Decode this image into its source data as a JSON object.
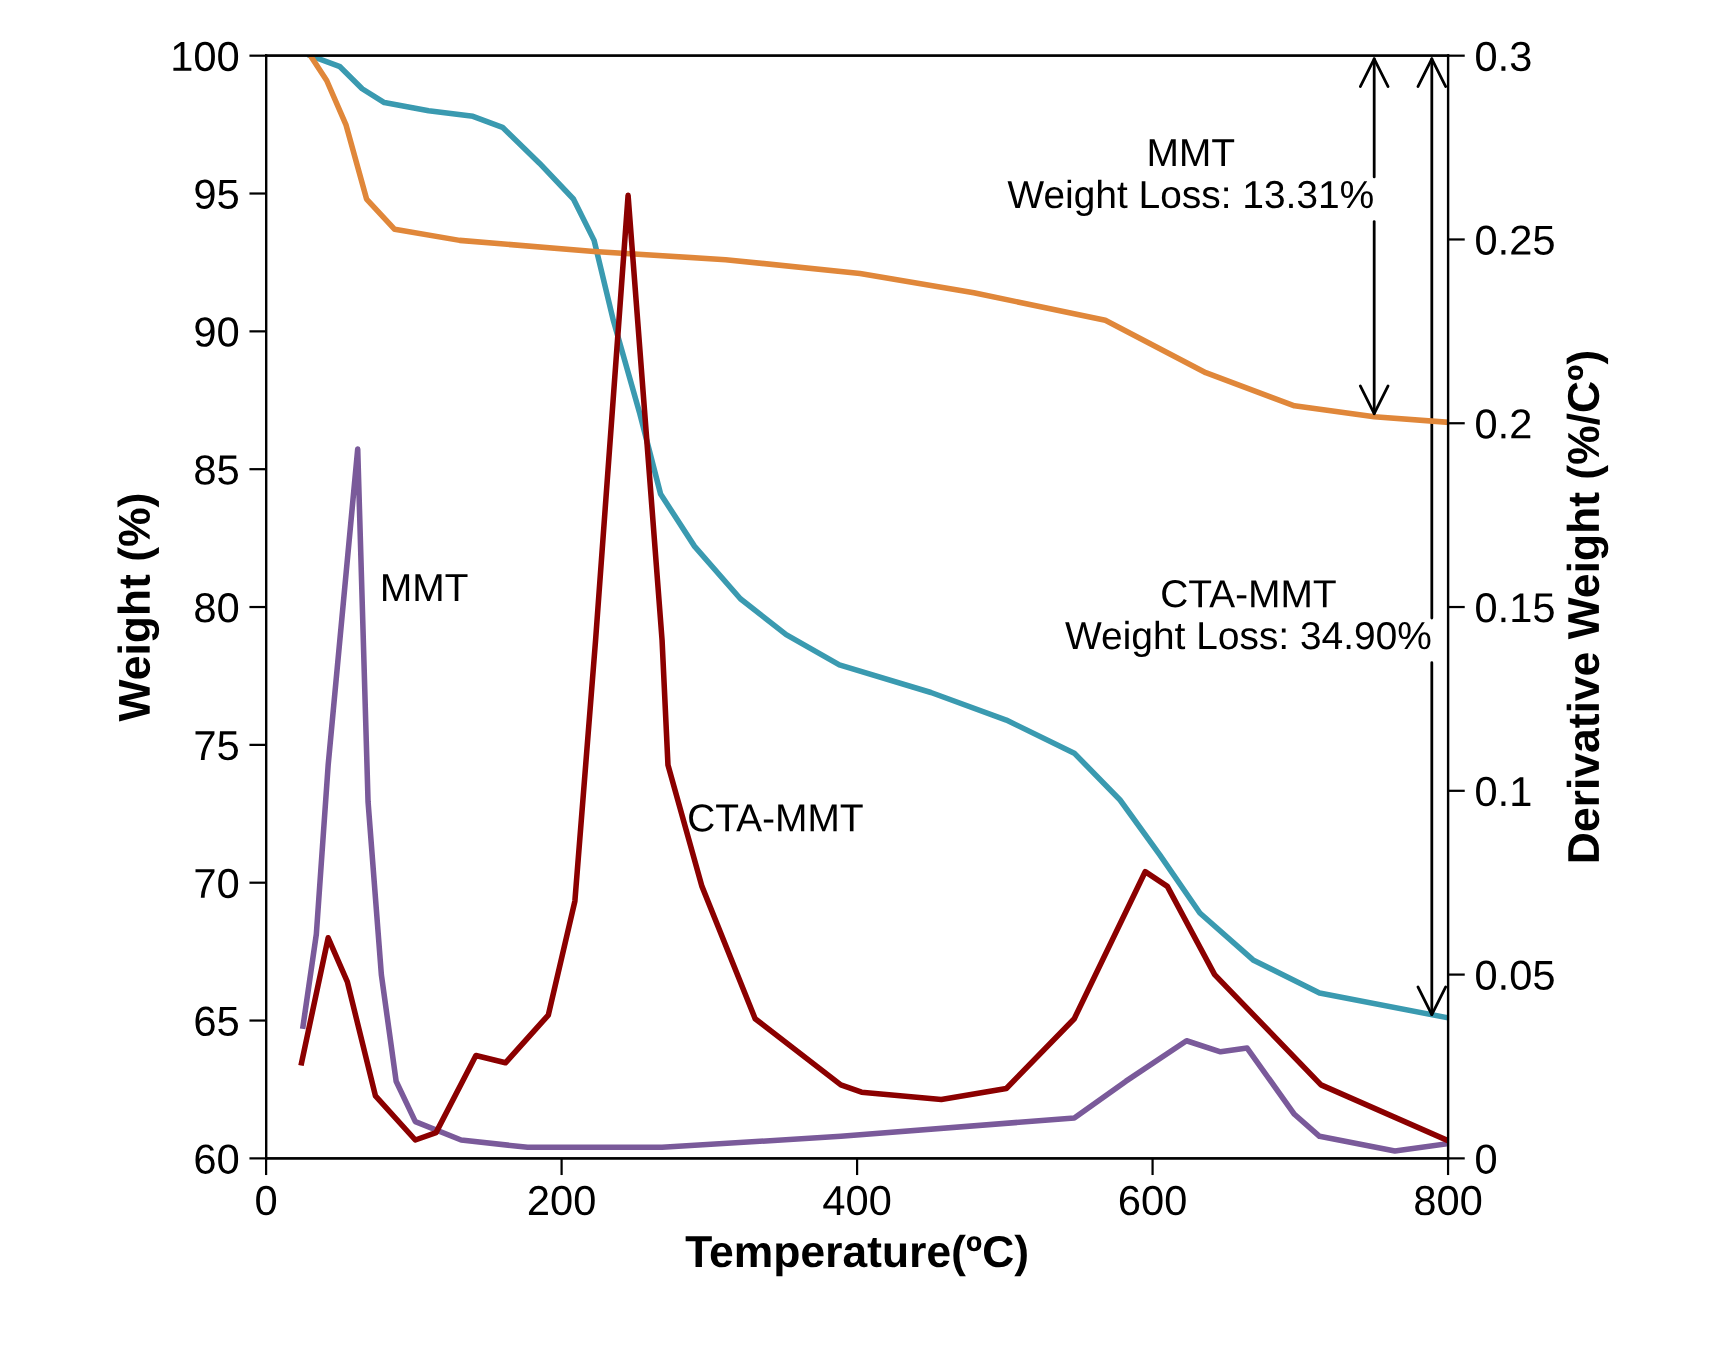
{
  "chart_data": {
    "type": "line",
    "xlabel": "Temperature(ºC)",
    "ylabel": "Weight (%)",
    "y2label": "Derivative Weight (%/Cº)",
    "xlim": [
      0,
      800
    ],
    "xticks": [
      0,
      200,
      400,
      600,
      800
    ],
    "ylim": [
      60,
      100
    ],
    "yticks": [
      60,
      65,
      70,
      75,
      80,
      85,
      90,
      95,
      100
    ],
    "y2lim": [
      0,
      0.3
    ],
    "y2ticks": [
      0,
      0.05,
      0.1,
      0.15,
      0.2,
      0.25,
      0.3
    ],
    "grid": false,
    "legend": false,
    "marker": "none",
    "line_style": "solid",
    "series": [
      {
        "color": "#3a9ab0",
        "x": [
          30,
          50,
          65,
          80,
          110,
          140,
          160,
          185,
          208,
          222,
          235,
          253,
          267,
          290,
          321,
          352,
          388,
          450,
          501,
          547,
          578,
          605,
          632,
          668,
          713,
          800
        ],
        "values": [
          100,
          99.6,
          98.8,
          98.3,
          98.0,
          97.8,
          97.4,
          96.1,
          94.8,
          93.3,
          90.4,
          87.0,
          84.1,
          82.2,
          80.3,
          79.0,
          77.9,
          76.9,
          75.9,
          74.7,
          73.0,
          71.0,
          68.9,
          67.2,
          66.0,
          65.1
        ]
      },
      {
        "color": "#e0873a",
        "x": [
          30,
          41,
          54,
          68,
          87,
          131,
          222,
          311,
          402,
          479,
          568,
          636,
          696,
          750,
          800
        ],
        "values": [
          100,
          99.1,
          97.5,
          94.8,
          93.7,
          93.3,
          92.9,
          92.6,
          92.1,
          91.4,
          90.4,
          88.5,
          87.3,
          86.9,
          86.7
        ]
      },
      {
        "name": "MMT",
        "axis": "y2",
        "color": "#7a5a9a",
        "x": [
          25,
          34,
          42,
          62,
          69,
          78,
          88,
          101,
          132,
          177,
          268,
          389,
          547,
          582,
          623,
          646,
          664,
          696,
          713,
          764,
          800
        ],
        "values": [
          0.036,
          0.061,
          0.107,
          0.193,
          0.097,
          0.05,
          0.021,
          0.01,
          0.005,
          0.003,
          0.003,
          0.006,
          0.011,
          0.021,
          0.032,
          0.029,
          0.03,
          0.012,
          0.006,
          0.002,
          0.004
        ]
      },
      {
        "name": "CTA-MMT",
        "axis": "y2",
        "color": "#8b0000",
        "x": [
          24,
          42,
          55,
          74,
          101,
          115,
          142,
          162,
          191,
          209,
          223,
          245,
          268,
          272,
          295,
          331,
          389,
          403,
          457,
          501,
          547,
          595,
          610,
          642,
          714,
          799
        ],
        "values": [
          0.026,
          0.06,
          0.048,
          0.017,
          0.005,
          0.007,
          0.028,
          0.026,
          0.039,
          0.07,
          0.141,
          0.262,
          0.141,
          0.107,
          0.074,
          0.038,
          0.02,
          0.018,
          0.016,
          0.019,
          0.038,
          0.078,
          0.074,
          0.05,
          0.02,
          0.005
        ]
      }
    ],
    "annotations": [
      {
        "text": "MMT\nWeight Loss: 13.31%",
        "x": 750,
        "y": 86.9
      },
      {
        "text": "CTA-MMT\nWeight Loss: 34.90%",
        "x": 789,
        "y": 65.1
      }
    ]
  }
}
